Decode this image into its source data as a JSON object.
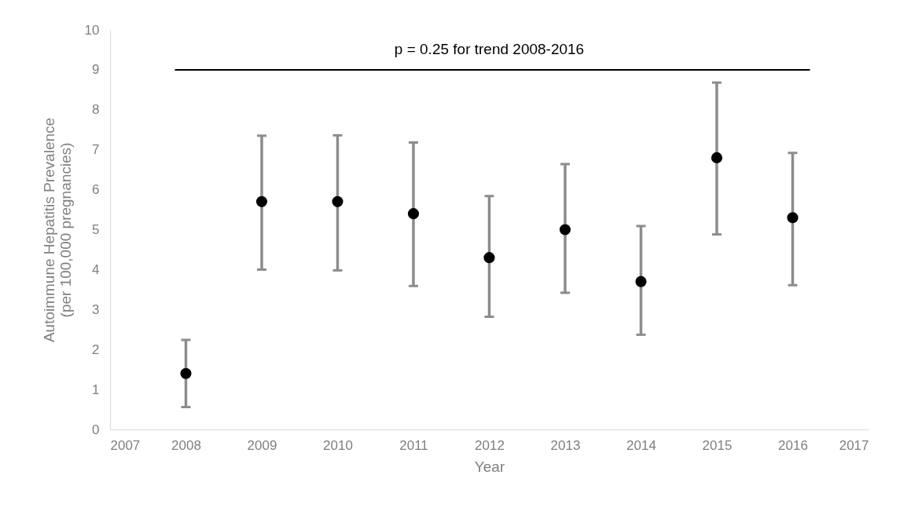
{
  "chart_data": {
    "type": "scatter",
    "xlabel": "Year",
    "ylabel": "Autoimmune Hepatitis Prevalence\n(per 100,000 pregnancies)",
    "x": [
      2008,
      2009,
      2010,
      2011,
      2012,
      2013,
      2014,
      2015,
      2016
    ],
    "values": [
      1.4,
      5.7,
      5.7,
      5.4,
      4.3,
      5.0,
      3.7,
      6.8,
      5.3
    ],
    "errors": [
      [
        0.56,
        2.24
      ],
      [
        4.0,
        7.35
      ],
      [
        3.98,
        7.36
      ],
      [
        3.59,
        7.18
      ],
      [
        2.82,
        5.84
      ],
      [
        3.42,
        6.64
      ],
      [
        2.37,
        5.09
      ],
      [
        4.88,
        8.68
      ],
      [
        3.61,
        6.92
      ]
    ],
    "color": "#000000",
    "xlim": [
      2007,
      2017
    ],
    "xticks": [
      2007,
      2008,
      2009,
      2010,
      2011,
      2012,
      2013,
      2014,
      2015,
      2016,
      2017
    ],
    "ylim": [
      0,
      10
    ],
    "yticks": [
      0,
      1,
      2,
      3,
      4,
      5,
      6,
      7,
      8,
      9,
      10
    ],
    "ref_lines": [
      {
        "axis": "y",
        "value": 9,
        "color": "#000000"
      }
    ],
    "annotations": [
      "p = 0.25 for trend 2008-2016"
    ],
    "marker": "circle",
    "grid": false
  }
}
